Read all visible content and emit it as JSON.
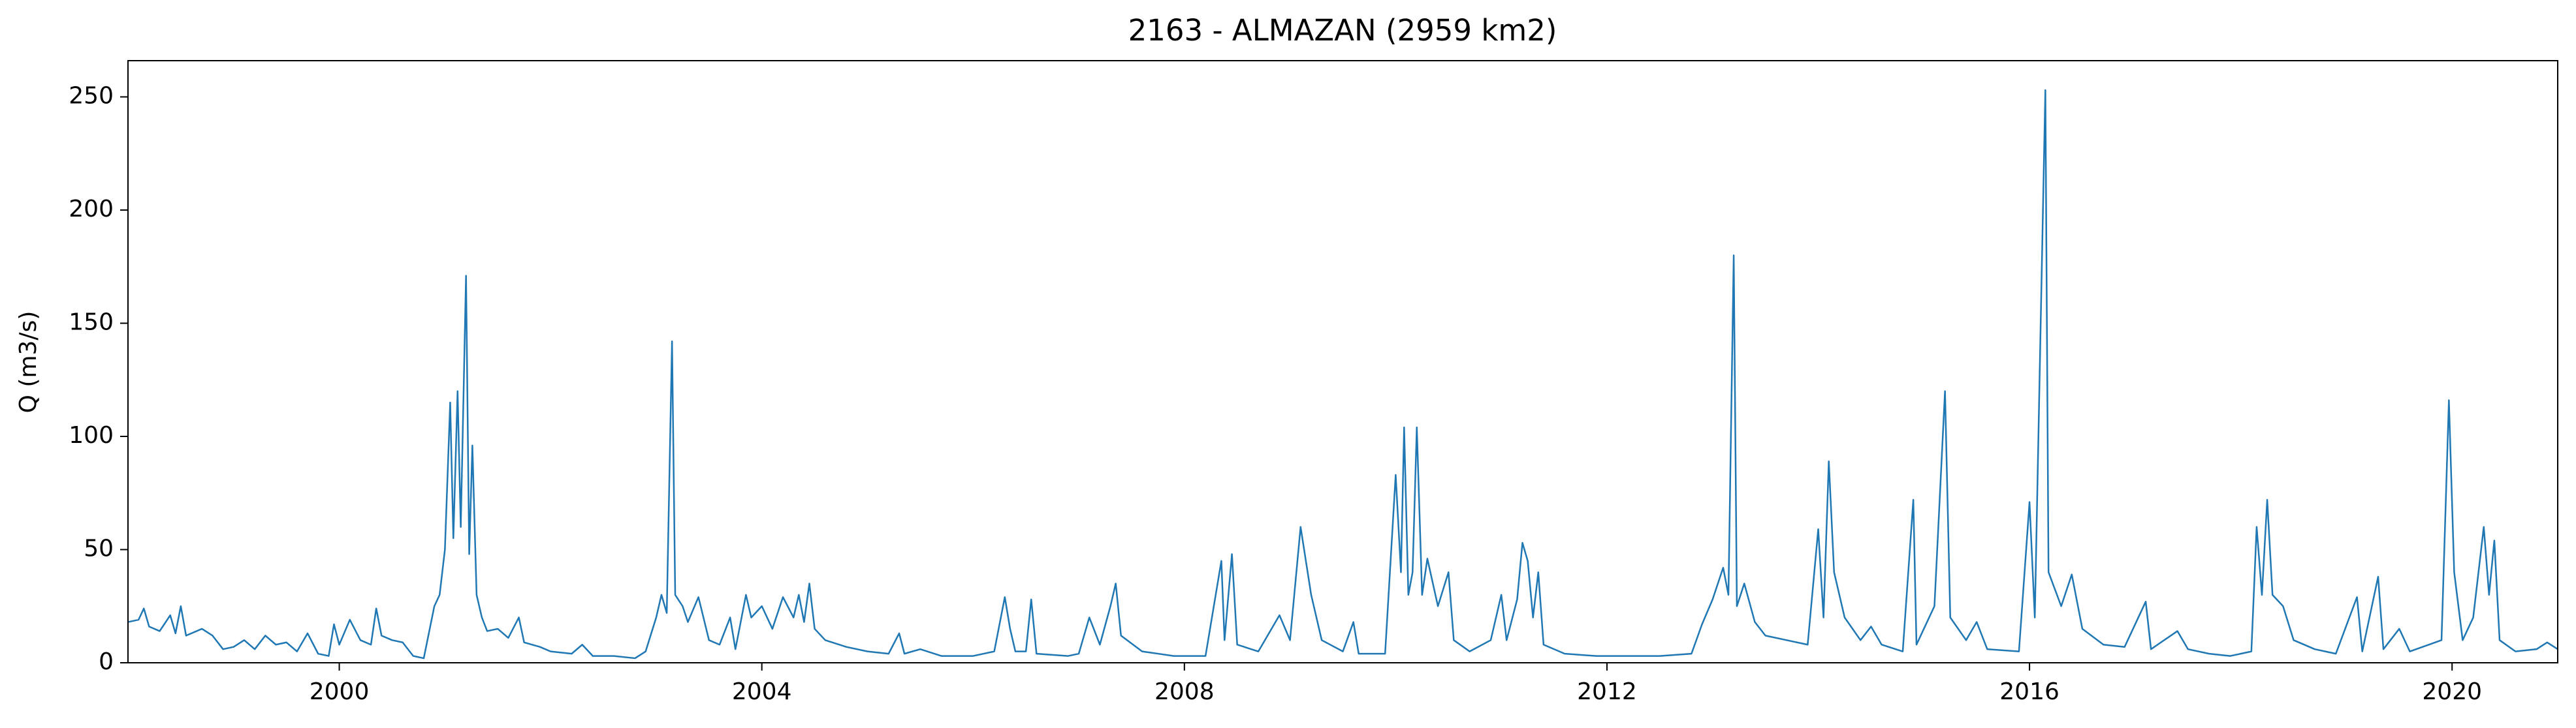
{
  "chart_data": {
    "type": "line",
    "title": "2163 - ALMAZAN (2959 km2)",
    "y_label": "Q (m3/s)",
    "x": [
      1998.0,
      1998.1,
      1998.15,
      1998.2,
      1998.3,
      1998.4,
      1998.45,
      1998.5,
      1998.55,
      1998.7,
      1998.8,
      1998.9,
      1999.0,
      1999.1,
      1999.2,
      1999.3,
      1999.4,
      1999.5,
      1999.6,
      1999.7,
      1999.8,
      1999.9,
      1999.95,
      2000.0,
      2000.1,
      2000.2,
      2000.3,
      2000.35,
      2000.4,
      2000.5,
      2000.6,
      2000.7,
      2000.8,
      2000.9,
      2000.95,
      2001.0,
      2001.05,
      2001.08,
      2001.12,
      2001.15,
      2001.2,
      2001.23,
      2001.26,
      2001.3,
      2001.35,
      2001.4,
      2001.5,
      2001.6,
      2001.7,
      2001.75,
      2001.9,
      2002.0,
      2002.2,
      2002.3,
      2002.4,
      2002.6,
      2002.8,
      2002.9,
      2003.0,
      2003.05,
      2003.1,
      2003.15,
      2003.18,
      2003.25,
      2003.3,
      2003.4,
      2003.5,
      2003.6,
      2003.7,
      2003.75,
      2003.85,
      2003.9,
      2004.0,
      2004.1,
      2004.2,
      2004.3,
      2004.35,
      2004.4,
      2004.45,
      2004.5,
      2004.6,
      2004.8,
      2005.0,
      2005.2,
      2005.3,
      2005.35,
      2005.5,
      2005.7,
      2006.0,
      2006.2,
      2006.3,
      2006.35,
      2006.4,
      2006.5,
      2006.55,
      2006.6,
      2006.9,
      2007.0,
      2007.1,
      2007.2,
      2007.3,
      2007.35,
      2007.4,
      2007.6,
      2007.9,
      2008.2,
      2008.35,
      2008.38,
      2008.45,
      2008.5,
      2008.7,
      2008.9,
      2009.0,
      2009.1,
      2009.2,
      2009.3,
      2009.5,
      2009.6,
      2009.65,
      2009.9,
      2010.0,
      2010.05,
      2010.08,
      2010.12,
      2010.16,
      2010.2,
      2010.25,
      2010.3,
      2010.4,
      2010.5,
      2010.55,
      2010.7,
      2010.9,
      2011.0,
      2011.05,
      2011.15,
      2011.2,
      2011.25,
      2011.3,
      2011.35,
      2011.4,
      2011.6,
      2011.9,
      2012.2,
      2012.5,
      2012.8,
      2012.9,
      2013.0,
      2013.1,
      2013.15,
      2013.2,
      2013.23,
      2013.3,
      2013.4,
      2013.5,
      2013.7,
      2013.9,
      2014.0,
      2014.05,
      2014.1,
      2014.15,
      2014.25,
      2014.4,
      2014.5,
      2014.6,
      2014.8,
      2014.9,
      2014.93,
      2015.0,
      2015.1,
      2015.2,
      2015.25,
      2015.4,
      2015.5,
      2015.6,
      2015.9,
      2016.0,
      2016.05,
      2016.15,
      2016.18,
      2016.3,
      2016.4,
      2016.5,
      2016.7,
      2016.9,
      2017.1,
      2017.15,
      2017.4,
      2017.5,
      2017.7,
      2017.9,
      2018.1,
      2018.15,
      2018.2,
      2018.25,
      2018.3,
      2018.4,
      2018.5,
      2018.7,
      2018.9,
      2019.1,
      2019.15,
      2019.3,
      2019.35,
      2019.5,
      2019.6,
      2019.9,
      2019.97,
      2020.02,
      2020.1,
      2020.2,
      2020.3,
      2020.35,
      2020.4,
      2020.45,
      2020.6,
      2020.8,
      2020.9,
      2021.0
    ],
    "series": [
      {
        "name": "Q",
        "color": "#1f77b4",
        "values": [
          18,
          19,
          24,
          16,
          14,
          21,
          13,
          25,
          12,
          15,
          12,
          6,
          7,
          10,
          6,
          12,
          8,
          9,
          5,
          13,
          4,
          3,
          17,
          8,
          19,
          10,
          8,
          24,
          12,
          10,
          9,
          3,
          2,
          25,
          30,
          50,
          115,
          55,
          120,
          60,
          171,
          48,
          96,
          30,
          20,
          14,
          15,
          11,
          20,
          9,
          7,
          5,
          4,
          8,
          3,
          3,
          2,
          5,
          20,
          30,
          22,
          142,
          30,
          25,
          18,
          29,
          10,
          8,
          20,
          6,
          30,
          20,
          25,
          15,
          29,
          20,
          30,
          18,
          35,
          15,
          10,
          7,
          5,
          4,
          13,
          4,
          6,
          3,
          3,
          5,
          29,
          15,
          5,
          5,
          28,
          4,
          3,
          4,
          20,
          8,
          25,
          35,
          12,
          5,
          3,
          3,
          45,
          10,
          48,
          8,
          5,
          21,
          10,
          60,
          30,
          10,
          5,
          18,
          4,
          4,
          83,
          40,
          104,
          30,
          40,
          104,
          30,
          46,
          25,
          40,
          10,
          5,
          10,
          30,
          10,
          28,
          53,
          45,
          20,
          40,
          8,
          4,
          3,
          3,
          3,
          4,
          17,
          28,
          42,
          30,
          180,
          25,
          35,
          18,
          12,
          10,
          8,
          59,
          20,
          89,
          40,
          20,
          10,
          16,
          8,
          5,
          72,
          8,
          15,
          25,
          120,
          20,
          10,
          18,
          6,
          5,
          71,
          20,
          253,
          40,
          25,
          39,
          15,
          8,
          7,
          27,
          6,
          14,
          6,
          4,
          3,
          5,
          60,
          30,
          72,
          30,
          25,
          10,
          6,
          4,
          29,
          5,
          38,
          6,
          15,
          5,
          10,
          116,
          40,
          10,
          20,
          60,
          30,
          54,
          10,
          5,
          6,
          9,
          6
        ]
      }
    ],
    "xlim": [
      1998.0,
      2021.0
    ],
    "xticks": [
      2000,
      2004,
      2008,
      2012,
      2016,
      2020
    ],
    "ylim": [
      0,
      266
    ],
    "yticks": [
      0,
      50,
      100,
      150,
      200,
      250
    ]
  }
}
